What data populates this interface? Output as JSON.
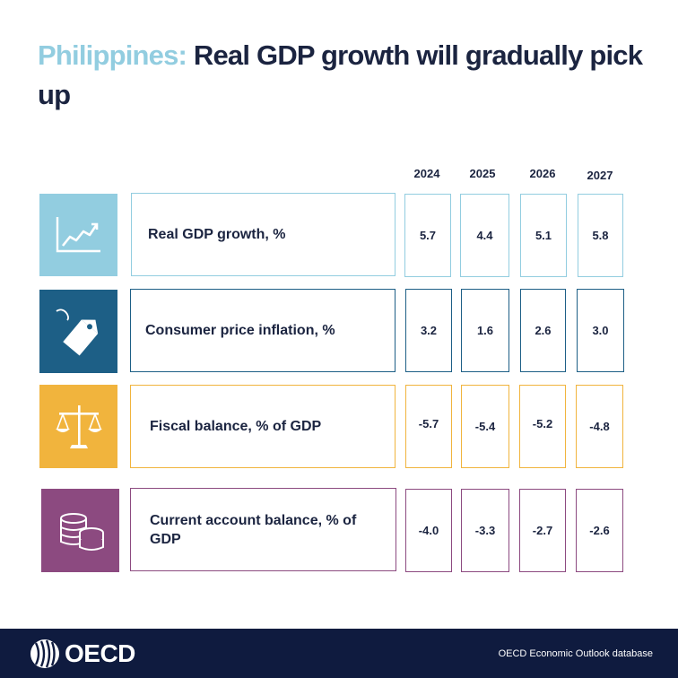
{
  "title": {
    "country": "Philippines:",
    "rest": "Real GDP growth will gradually pick up"
  },
  "years": [
    "2024",
    "2025",
    "2026",
    "2027"
  ],
  "rows": [
    {
      "label": "Real GDP growth, %",
      "icon": "line-chart-icon",
      "color": "#92cde0",
      "values": [
        "5.7",
        "4.4",
        "5.1",
        "5.8"
      ]
    },
    {
      "label": "Consumer price inflation, %",
      "icon": "price-tag-icon",
      "color": "#1d5f86",
      "values": [
        "3.2",
        "1.6",
        "2.6",
        "3.0"
      ]
    },
    {
      "label": "Fiscal balance, % of GDP",
      "icon": "balance-scale-icon",
      "color": "#f1b43d",
      "values": [
        "-5.7",
        "-5.4",
        "-5.2",
        "-4.8"
      ]
    },
    {
      "label": "Current account balance, % of GDP",
      "icon": "coins-icon",
      "color": "#8c4a80",
      "values": [
        "-4.0",
        "-3.3",
        "-2.7",
        "-2.6"
      ]
    }
  ],
  "footer": {
    "logo_text": "OECD",
    "source": "OECD Economic Outlook database"
  }
}
